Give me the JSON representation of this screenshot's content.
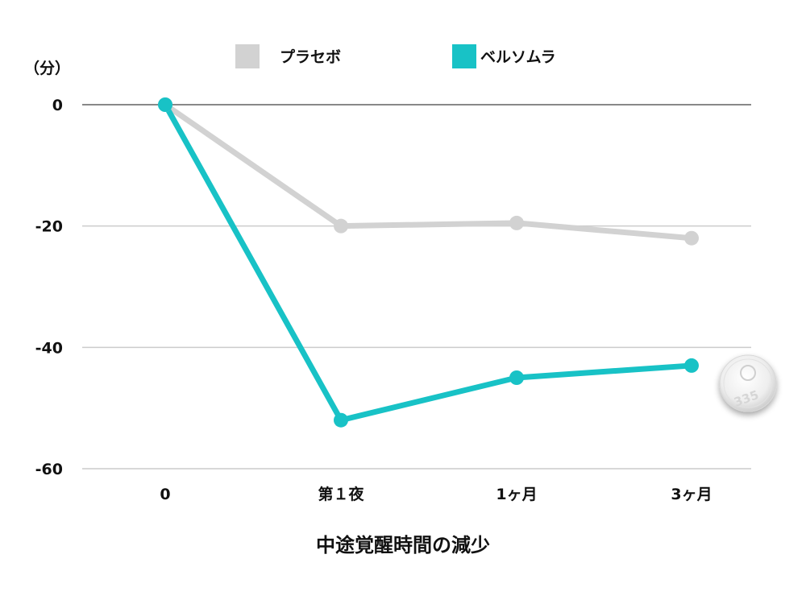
{
  "chart_data": {
    "type": "line",
    "categories": [
      "0",
      "第１夜",
      "1ヶ月",
      "3ヶ月"
    ],
    "series": [
      {
        "name": "プラセボ",
        "values": [
          0,
          -20,
          -19.5,
          -22
        ],
        "color": "#d2d2d2"
      },
      {
        "name": "ベルソムラ",
        "values": [
          0,
          -52,
          -45,
          -43
        ],
        "color": "#18c2c6"
      }
    ],
    "y_unit": "（分）",
    "y_ticks": [
      "0",
      "-20",
      "-40",
      "-60"
    ],
    "ylim": [
      -60,
      0
    ],
    "xlabel": "中途覚醒時間の減少",
    "grid": true,
    "legend": "top-center",
    "tablet_imprint": "335"
  }
}
